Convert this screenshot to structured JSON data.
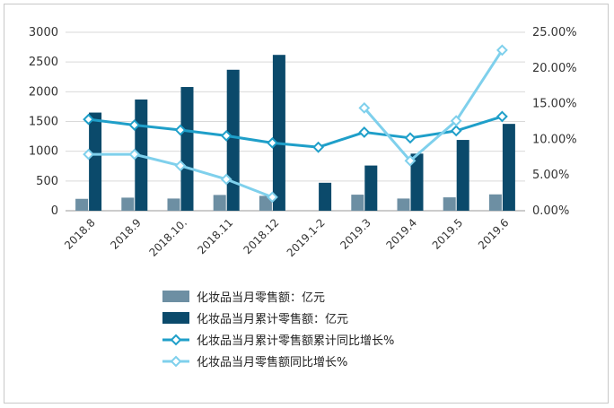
{
  "chart_data": {
    "type": "bar",
    "categories": [
      "2018.8",
      "2018.9",
      "2018.10.",
      "2018.11",
      "2018.12",
      "2019.1-2",
      "2019.3",
      "2019.4",
      "2019.5",
      "2019.6"
    ],
    "series": [
      {
        "name": "化妆品当月零售额：亿元",
        "type": "bar",
        "axis": "left",
        "color": "#6d8fa3",
        "values": [
          200,
          220,
          205,
          265,
          250,
          null,
          270,
          205,
          225,
          275
        ]
      },
      {
        "name": "化妆品当月累计零售额：亿元",
        "type": "bar",
        "axis": "left",
        "color": "#0b4a6b",
        "values": [
          1650,
          1870,
          2080,
          2370,
          2620,
          470,
          760,
          960,
          1190,
          1460
        ]
      },
      {
        "name": "化妆品当月累计零售额累计同比增长%",
        "type": "line",
        "axis": "right",
        "color": "#1f9fc9",
        "values": [
          12.8,
          12.0,
          11.3,
          10.5,
          9.5,
          8.9,
          11.0,
          10.2,
          11.2,
          13.2
        ]
      },
      {
        "name": "化妆品当月零售额同比增长%",
        "type": "line",
        "axis": "right",
        "color": "#7fd0ec",
        "values": [
          7.9,
          7.9,
          6.3,
          4.4,
          1.9,
          null,
          14.4,
          7.0,
          12.6,
          22.5
        ]
      }
    ],
    "y_left": {
      "ylim": [
        0,
        3000
      ],
      "ticks": [
        0,
        500,
        1000,
        1500,
        2000,
        2500,
        3000
      ]
    },
    "y_right": {
      "ylim": [
        0,
        25
      ],
      "ticks": [
        "0.00%",
        "5.00%",
        "10.00%",
        "15.00%",
        "20.00%",
        "25.00%"
      ]
    },
    "grid": "horizontal",
    "legend": "bottom"
  }
}
